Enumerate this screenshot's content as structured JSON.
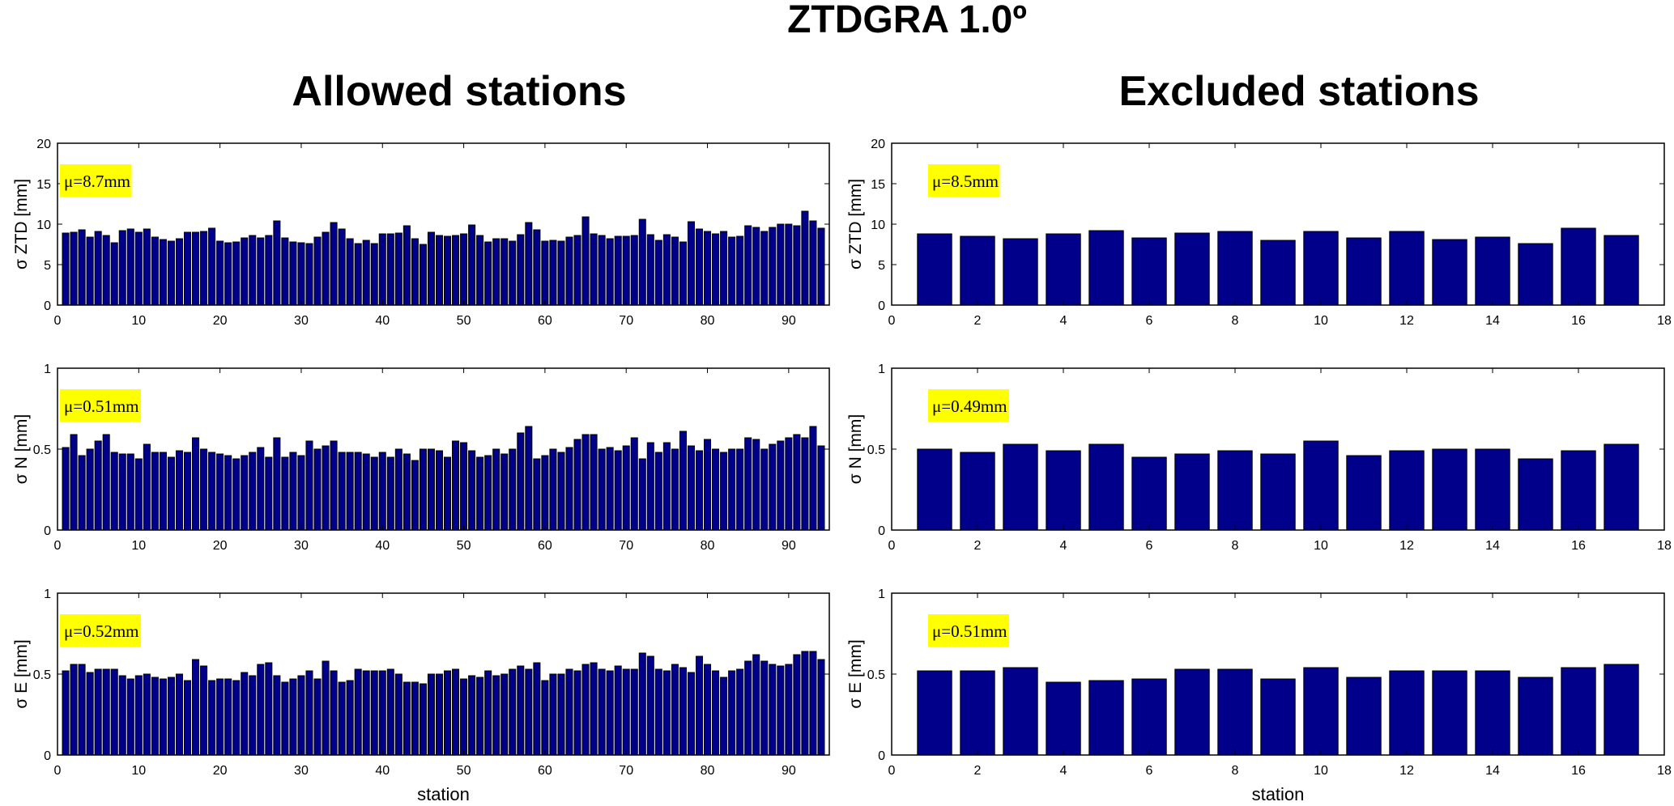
{
  "figure": {
    "title": "ZTDGRA 1.0º",
    "column_titles": [
      "Allowed stations",
      "Excluded stations"
    ],
    "xlabel": "station",
    "colors": {
      "bar": "#00008b",
      "mean_highlight": "#ffff00"
    }
  },
  "chart_data": [
    {
      "type": "bar",
      "column": "Allowed stations",
      "ylabel": "σ ZTD [mm]",
      "xlim": [
        0,
        95
      ],
      "ylim": [
        0,
        20
      ],
      "xticks": [
        0,
        10,
        20,
        30,
        40,
        50,
        60,
        70,
        80,
        90
      ],
      "yticks": [
        0,
        5,
        10,
        15,
        20
      ],
      "annotation": "μ=8.7mm",
      "x": [
        1,
        2,
        3,
        4,
        5,
        6,
        7,
        8,
        9,
        10,
        11,
        12,
        13,
        14,
        15,
        16,
        17,
        18,
        19,
        20,
        21,
        22,
        23,
        24,
        25,
        26,
        27,
        28,
        29,
        30,
        31,
        32,
        33,
        34,
        35,
        36,
        37,
        38,
        39,
        40,
        41,
        42,
        43,
        44,
        45,
        46,
        47,
        48,
        49,
        50,
        51,
        52,
        53,
        54,
        55,
        56,
        57,
        58,
        59,
        60,
        61,
        62,
        63,
        64,
        65,
        66,
        67,
        68,
        69,
        70,
        71,
        72,
        73,
        74,
        75,
        76,
        77,
        78,
        79,
        80,
        81,
        82,
        83,
        84,
        85,
        86,
        87,
        88,
        89,
        90,
        91,
        92,
        93,
        94
      ],
      "values": [
        8.9,
        9.0,
        9.3,
        8.4,
        9.1,
        8.6,
        7.7,
        9.2,
        9.4,
        9.0,
        9.4,
        8.4,
        8.1,
        7.9,
        8.2,
        9.0,
        9.0,
        9.1,
        9.5,
        7.9,
        7.7,
        7.8,
        8.3,
        8.6,
        8.3,
        8.6,
        10.4,
        8.3,
        7.8,
        7.7,
        7.6,
        8.4,
        9.0,
        10.2,
        9.4,
        8.2,
        7.6,
        8.0,
        7.6,
        8.8,
        8.8,
        8.9,
        9.8,
        8.2,
        7.5,
        9.0,
        8.6,
        8.5,
        8.6,
        8.8,
        9.9,
        8.6,
        7.8,
        8.2,
        8.2,
        7.9,
        8.7,
        10.2,
        9.3,
        7.9,
        8.0,
        7.9,
        8.4,
        8.6,
        10.9,
        8.8,
        8.6,
        8.2,
        8.5,
        8.5,
        8.6,
        10.6,
        8.7,
        8.0,
        8.7,
        8.4,
        7.8,
        10.3,
        9.4,
        9.1,
        8.8,
        9.1,
        8.4,
        8.5,
        9.8,
        9.6,
        9.1,
        9.6,
        10.0,
        10.0,
        9.8,
        11.6,
        10.4,
        9.5
      ]
    },
    {
      "type": "bar",
      "column": "Excluded stations",
      "ylabel": "σ ZTD [mm]",
      "xlim": [
        0,
        18
      ],
      "ylim": [
        0,
        20
      ],
      "xticks": [
        0,
        2,
        4,
        6,
        8,
        10,
        12,
        14,
        16,
        18
      ],
      "yticks": [
        0,
        5,
        10,
        15,
        20
      ],
      "annotation": "μ=8.5mm",
      "x": [
        1,
        2,
        3,
        4,
        5,
        6,
        7,
        8,
        9,
        10,
        11,
        12,
        13,
        14,
        15,
        16,
        17
      ],
      "values": [
        8.8,
        8.5,
        8.2,
        8.8,
        9.2,
        8.3,
        8.9,
        9.1,
        8.0,
        9.1,
        8.3,
        9.1,
        8.1,
        8.4,
        7.6,
        9.5,
        8.6
      ]
    },
    {
      "type": "bar",
      "column": "Allowed stations",
      "ylabel": "σ N [mm]",
      "xlim": [
        0,
        95
      ],
      "ylim": [
        0,
        1
      ],
      "xticks": [
        0,
        10,
        20,
        30,
        40,
        50,
        60,
        70,
        80,
        90
      ],
      "yticks": [
        0,
        0.5,
        1
      ],
      "annotation": "μ=0.51mm",
      "x": [
        1,
        2,
        3,
        4,
        5,
        6,
        7,
        8,
        9,
        10,
        11,
        12,
        13,
        14,
        15,
        16,
        17,
        18,
        19,
        20,
        21,
        22,
        23,
        24,
        25,
        26,
        27,
        28,
        29,
        30,
        31,
        32,
        33,
        34,
        35,
        36,
        37,
        38,
        39,
        40,
        41,
        42,
        43,
        44,
        45,
        46,
        47,
        48,
        49,
        50,
        51,
        52,
        53,
        54,
        55,
        56,
        57,
        58,
        59,
        60,
        61,
        62,
        63,
        64,
        65,
        66,
        67,
        68,
        69,
        70,
        71,
        72,
        73,
        74,
        75,
        76,
        77,
        78,
        79,
        80,
        81,
        82,
        83,
        84,
        85,
        86,
        87,
        88,
        89,
        90,
        91,
        92,
        93,
        94
      ],
      "values": [
        0.51,
        0.59,
        0.46,
        0.5,
        0.55,
        0.59,
        0.48,
        0.47,
        0.47,
        0.44,
        0.53,
        0.48,
        0.48,
        0.45,
        0.49,
        0.48,
        0.57,
        0.5,
        0.48,
        0.47,
        0.46,
        0.44,
        0.46,
        0.48,
        0.51,
        0.45,
        0.57,
        0.45,
        0.48,
        0.46,
        0.55,
        0.5,
        0.52,
        0.55,
        0.48,
        0.48,
        0.48,
        0.47,
        0.45,
        0.48,
        0.45,
        0.5,
        0.47,
        0.43,
        0.5,
        0.5,
        0.49,
        0.45,
        0.55,
        0.54,
        0.49,
        0.45,
        0.46,
        0.5,
        0.47,
        0.5,
        0.6,
        0.64,
        0.44,
        0.46,
        0.5,
        0.48,
        0.51,
        0.56,
        0.59,
        0.59,
        0.5,
        0.51,
        0.49,
        0.52,
        0.57,
        0.44,
        0.54,
        0.48,
        0.54,
        0.5,
        0.61,
        0.52,
        0.49,
        0.56,
        0.5,
        0.48,
        0.5,
        0.5,
        0.57,
        0.56,
        0.5,
        0.53,
        0.55,
        0.57,
        0.59,
        0.57,
        0.64,
        0.52
      ]
    },
    {
      "type": "bar",
      "column": "Excluded stations",
      "ylabel": "σ N [mm]",
      "xlim": [
        0,
        18
      ],
      "ylim": [
        0,
        1
      ],
      "xticks": [
        0,
        2,
        4,
        6,
        8,
        10,
        12,
        14,
        16,
        18
      ],
      "yticks": [
        0,
        0.5,
        1
      ],
      "annotation": "μ=0.49mm",
      "x": [
        1,
        2,
        3,
        4,
        5,
        6,
        7,
        8,
        9,
        10,
        11,
        12,
        13,
        14,
        15,
        16,
        17
      ],
      "values": [
        0.5,
        0.48,
        0.53,
        0.49,
        0.53,
        0.45,
        0.47,
        0.49,
        0.47,
        0.55,
        0.46,
        0.49,
        0.5,
        0.5,
        0.44,
        0.49,
        0.53
      ]
    },
    {
      "type": "bar",
      "column": "Allowed stations",
      "ylabel": "σ E [mm]",
      "xlabel": "station",
      "xlim": [
        0,
        95
      ],
      "ylim": [
        0,
        1
      ],
      "xticks": [
        0,
        10,
        20,
        30,
        40,
        50,
        60,
        70,
        80,
        90
      ],
      "yticks": [
        0,
        0.5,
        1
      ],
      "annotation": "μ=0.52mm",
      "x": [
        1,
        2,
        3,
        4,
        5,
        6,
        7,
        8,
        9,
        10,
        11,
        12,
        13,
        14,
        15,
        16,
        17,
        18,
        19,
        20,
        21,
        22,
        23,
        24,
        25,
        26,
        27,
        28,
        29,
        30,
        31,
        32,
        33,
        34,
        35,
        36,
        37,
        38,
        39,
        40,
        41,
        42,
        43,
        44,
        45,
        46,
        47,
        48,
        49,
        50,
        51,
        52,
        53,
        54,
        55,
        56,
        57,
        58,
        59,
        60,
        61,
        62,
        63,
        64,
        65,
        66,
        67,
        68,
        69,
        70,
        71,
        72,
        73,
        74,
        75,
        76,
        77,
        78,
        79,
        80,
        81,
        82,
        83,
        84,
        85,
        86,
        87,
        88,
        89,
        90,
        91,
        92,
        93,
        94
      ],
      "values": [
        0.52,
        0.56,
        0.56,
        0.51,
        0.53,
        0.53,
        0.53,
        0.49,
        0.47,
        0.49,
        0.5,
        0.48,
        0.47,
        0.48,
        0.5,
        0.46,
        0.59,
        0.55,
        0.46,
        0.47,
        0.47,
        0.46,
        0.51,
        0.49,
        0.56,
        0.57,
        0.49,
        0.45,
        0.47,
        0.49,
        0.52,
        0.47,
        0.58,
        0.52,
        0.45,
        0.46,
        0.53,
        0.52,
        0.52,
        0.52,
        0.53,
        0.5,
        0.45,
        0.45,
        0.44,
        0.5,
        0.5,
        0.52,
        0.53,
        0.47,
        0.49,
        0.48,
        0.52,
        0.49,
        0.5,
        0.53,
        0.55,
        0.53,
        0.57,
        0.46,
        0.5,
        0.5,
        0.53,
        0.52,
        0.56,
        0.57,
        0.53,
        0.52,
        0.55,
        0.53,
        0.53,
        0.63,
        0.61,
        0.53,
        0.52,
        0.56,
        0.54,
        0.51,
        0.61,
        0.56,
        0.52,
        0.48,
        0.52,
        0.53,
        0.58,
        0.62,
        0.58,
        0.56,
        0.55,
        0.56,
        0.62,
        0.64,
        0.64,
        0.59
      ]
    },
    {
      "type": "bar",
      "column": "Excluded stations",
      "ylabel": "σ E [mm]",
      "xlabel": "station",
      "xlim": [
        0,
        18
      ],
      "ylim": [
        0,
        1
      ],
      "xticks": [
        0,
        2,
        4,
        6,
        8,
        10,
        12,
        14,
        16,
        18
      ],
      "yticks": [
        0,
        0.5,
        1
      ],
      "annotation": "μ=0.51mm",
      "x": [
        1,
        2,
        3,
        4,
        5,
        6,
        7,
        8,
        9,
        10,
        11,
        12,
        13,
        14,
        15,
        16,
        17
      ],
      "values": [
        0.52,
        0.52,
        0.54,
        0.45,
        0.46,
        0.47,
        0.53,
        0.53,
        0.47,
        0.54,
        0.48,
        0.52,
        0.52,
        0.52,
        0.48,
        0.54,
        0.56
      ]
    }
  ]
}
